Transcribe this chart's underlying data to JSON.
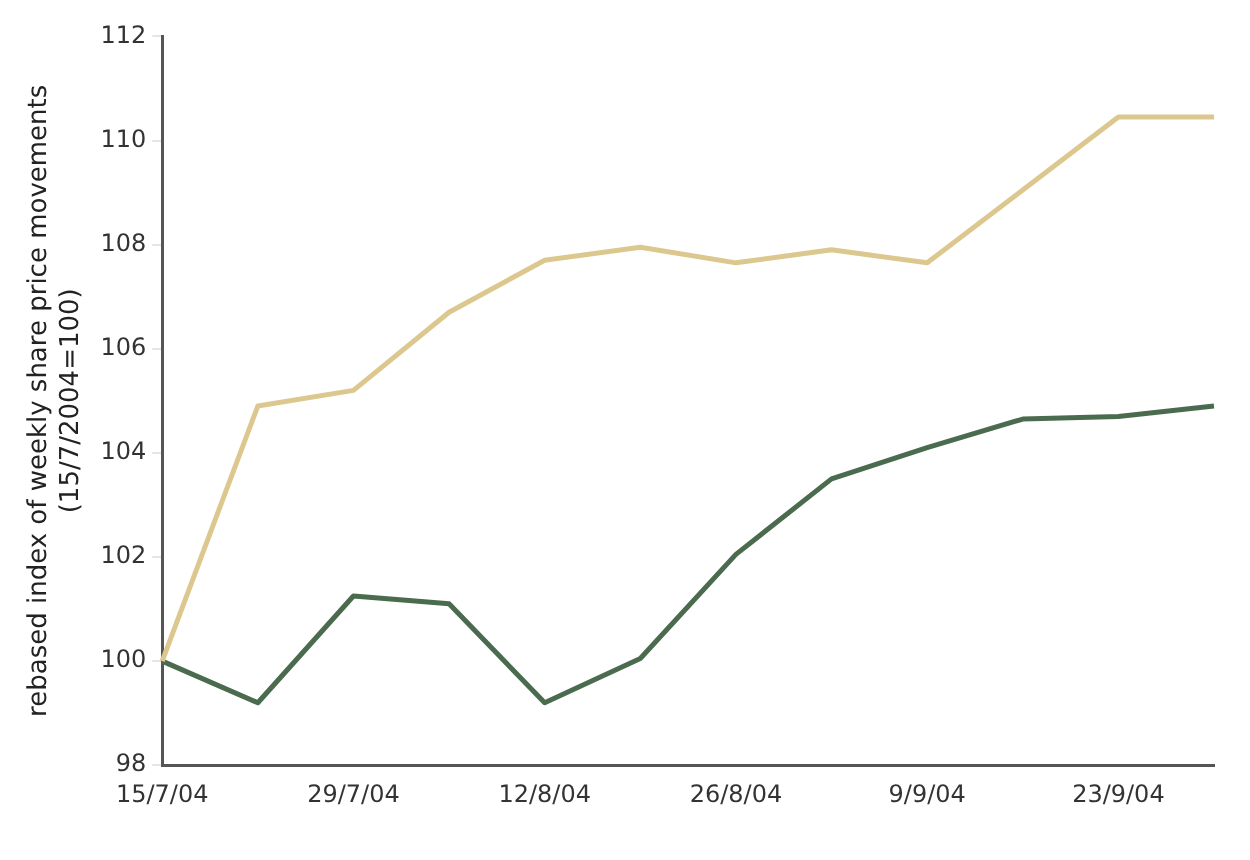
{
  "chart_data": {
    "type": "line",
    "ylabel": "rebased index of weekly share price movements\n(15/7/2004=100)",
    "categories": [
      "15/7/04",
      null,
      "29/7/04",
      null,
      "12/8/04",
      null,
      "26/8/04",
      null,
      "9/9/04",
      null,
      "23/9/04",
      null
    ],
    "series": [
      {
        "color": "#dcc88e",
        "values": [
          100,
          104.9,
          105.2,
          106.7,
          107.7,
          107.95,
          107.65,
          107.9,
          107.65,
          109.05,
          110.45,
          110.45
        ]
      },
      {
        "color": "#4b6b4f",
        "values": [
          100,
          99.2,
          101.25,
          101.1,
          99.2,
          100.05,
          102.05,
          103.5,
          104.1,
          104.65,
          104.7,
          104.9
        ]
      }
    ],
    "ylim": [
      98,
      112
    ],
    "yticks": [
      98,
      100,
      102,
      104,
      106,
      108,
      110,
      112
    ],
    "grid": false,
    "legend": false,
    "marker": "none",
    "line_style": "solid"
  }
}
